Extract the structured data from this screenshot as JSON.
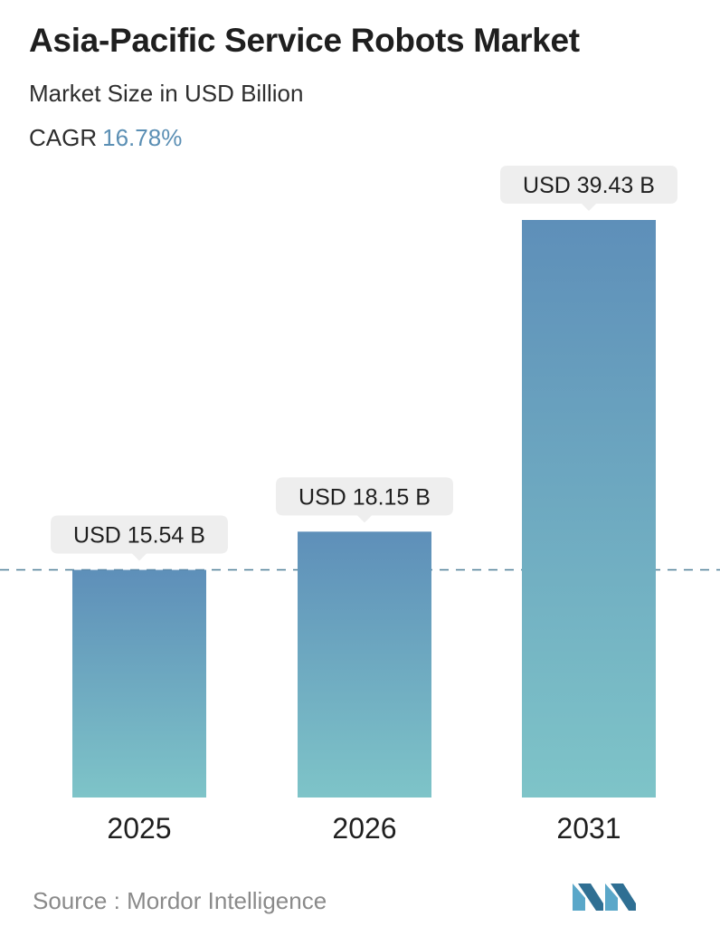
{
  "header": {
    "title": "Asia-Pacific Service Robots Market",
    "subtitle": "Market Size in USD Billion",
    "cagr_label": "CAGR",
    "cagr_value": "16.78%"
  },
  "chart_data": {
    "type": "bar",
    "categories": [
      "2025",
      "2026",
      "2031"
    ],
    "values": [
      15.54,
      18.15,
      39.43
    ],
    "value_labels": [
      "USD 15.54 B",
      "USD 18.15 B",
      "USD 39.43 B"
    ],
    "title": "Asia-Pacific Service Robots Market",
    "ylabel": "Market Size in USD Billion",
    "ylim": [
      0,
      39.43
    ],
    "grid": false,
    "reference_line": 15.54,
    "colors": {
      "bar_top": "#5e8fb9",
      "bar_bottom": "#7ec4c8",
      "label_bg": "#eeeeee",
      "dashed_line": "#4f7f97"
    }
  },
  "footer": {
    "source_label": "Source :",
    "source_name": "Mordor Intelligence"
  },
  "logo": {
    "icon": "mordor-intelligence-logo",
    "colors": [
      "#5aa7c9",
      "#2f6f93"
    ]
  }
}
